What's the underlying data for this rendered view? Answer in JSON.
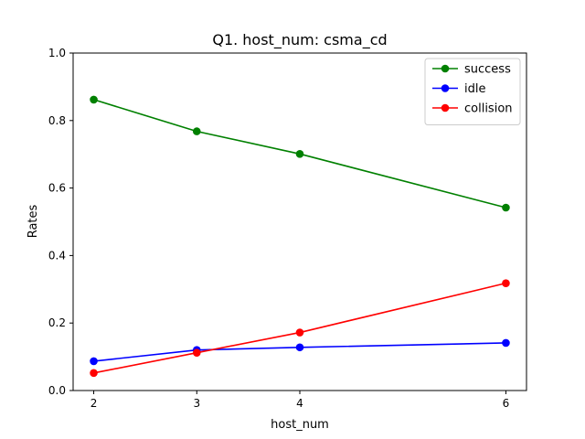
{
  "chart_data": {
    "type": "line",
    "title": "Q1. host_num: csma_cd",
    "xlabel": "host_num",
    "ylabel": "Rates",
    "x": [
      2,
      3,
      4,
      6
    ],
    "xticks": [
      "2",
      "3",
      "4",
      "6"
    ],
    "yticks": [
      "0.0",
      "0.2",
      "0.4",
      "0.6",
      "0.8",
      "1.0"
    ],
    "xlim": [
      1.8,
      6.2
    ],
    "ylim": [
      0,
      1
    ],
    "grid": false,
    "legend_position": "top-right",
    "series": [
      {
        "name": "success",
        "color": "#008000",
        "values": [
          0.862,
          0.768,
          0.701,
          0.542
        ]
      },
      {
        "name": "idle",
        "color": "#0000ff",
        "values": [
          0.087,
          0.12,
          0.128,
          0.141
        ]
      },
      {
        "name": "collision",
        "color": "#ff0000",
        "values": [
          0.052,
          0.112,
          0.172,
          0.318
        ]
      }
    ]
  }
}
